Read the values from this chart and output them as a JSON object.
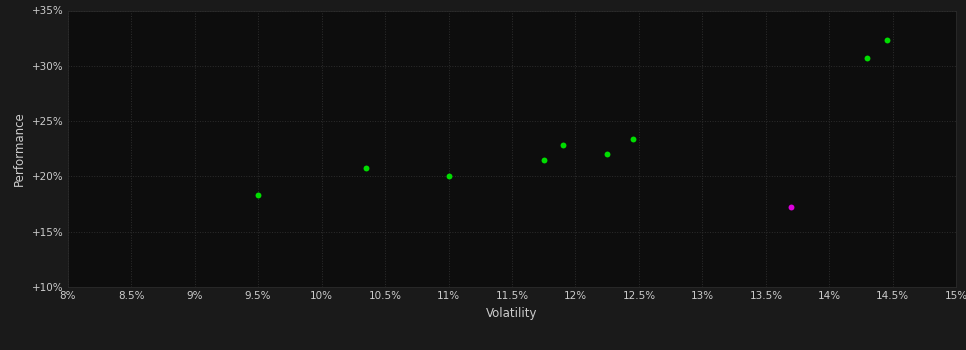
{
  "background_color": "#1a1a1a",
  "plot_bg_color": "#0d0d0d",
  "text_color": "#cccccc",
  "xlabel": "Volatility",
  "ylabel": "Performance",
  "xlim": [
    0.08,
    0.15
  ],
  "ylim": [
    0.1,
    0.35
  ],
  "xtick_vals": [
    0.08,
    0.085,
    0.09,
    0.095,
    0.1,
    0.105,
    0.11,
    0.115,
    0.12,
    0.125,
    0.13,
    0.135,
    0.14,
    0.145,
    0.15
  ],
  "xtick_labels": [
    "8%",
    "8.5%",
    "9%",
    "9.5%",
    "10%",
    "10.5%",
    "11%",
    "11.5%",
    "12%",
    "12.5%",
    "13%",
    "13.5%",
    "14%",
    "14.5%",
    "15%"
  ],
  "ytick_vals": [
    0.1,
    0.15,
    0.2,
    0.25,
    0.3,
    0.35
  ],
  "ytick_labels": [
    "+10%",
    "+15%",
    "+20%",
    "+25%",
    "+30%",
    "+35%"
  ],
  "green_points": [
    [
      0.095,
      0.183
    ],
    [
      0.1035,
      0.208
    ],
    [
      0.11,
      0.2
    ],
    [
      0.1175,
      0.215
    ],
    [
      0.119,
      0.228
    ],
    [
      0.1225,
      0.22
    ],
    [
      0.1245,
      0.234
    ],
    [
      0.143,
      0.307
    ],
    [
      0.1445,
      0.323
    ]
  ],
  "magenta_points": [
    [
      0.137,
      0.172
    ]
  ],
  "point_size": 18,
  "green_color": "#00dd00",
  "magenta_color": "#dd00dd"
}
